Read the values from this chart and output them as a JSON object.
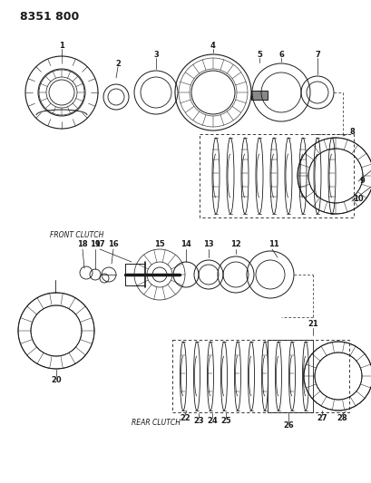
{
  "title": "8351 800",
  "bg_color": "#ffffff",
  "line_color": "#1a1a1a",
  "front_clutch_label": "FRONT CLUTCH",
  "rear_clutch_label": "REAR CLUTCH",
  "title_fontsize": 9,
  "label_fontsize": 5.5,
  "number_fontsize": 6,
  "fig_w": 4.1,
  "fig_h": 5.33,
  "dpi": 100
}
